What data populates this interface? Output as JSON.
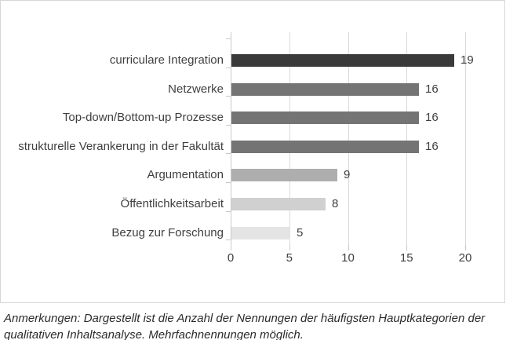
{
  "chart_data": {
    "type": "bar",
    "orientation": "horizontal",
    "title": "",
    "categories": [
      "curriculare Integration",
      "Netzwerke",
      "Top-down/Bottom-up Prozesse",
      "strukturelle Verankerung in der Fakultät",
      "Argumentation",
      "Öffentlichkeitsarbeit",
      "Bezug zur Forschung"
    ],
    "values": [
      19,
      16,
      16,
      16,
      9,
      8,
      5
    ],
    "bar_colors": [
      "#3a3a3a",
      "#747474",
      "#747474",
      "#747474",
      "#aeaeae",
      "#d0d0d0",
      "#e4e4e4"
    ],
    "xlim": [
      0,
      20
    ],
    "x_ticks": [
      0,
      5,
      10,
      15,
      20
    ],
    "grid": true,
    "legend": false,
    "value_labels_shown": true
  },
  "caption": {
    "lines": [
      "Anmerkungen: Dargestellt ist die Anzahl der Nennungen der häufigsten Hauptkategorien der",
      "qualitativen Inhaltsanalyse. Mehrfachnennungen möglich."
    ]
  },
  "colors": {
    "background": "#ffffff",
    "panel_border": "#d6d6d6",
    "gridline": "#d9d9d9",
    "axis": "#c9c9c9",
    "text": "#3f3f3f",
    "caption_text": "#2b2b2b"
  }
}
